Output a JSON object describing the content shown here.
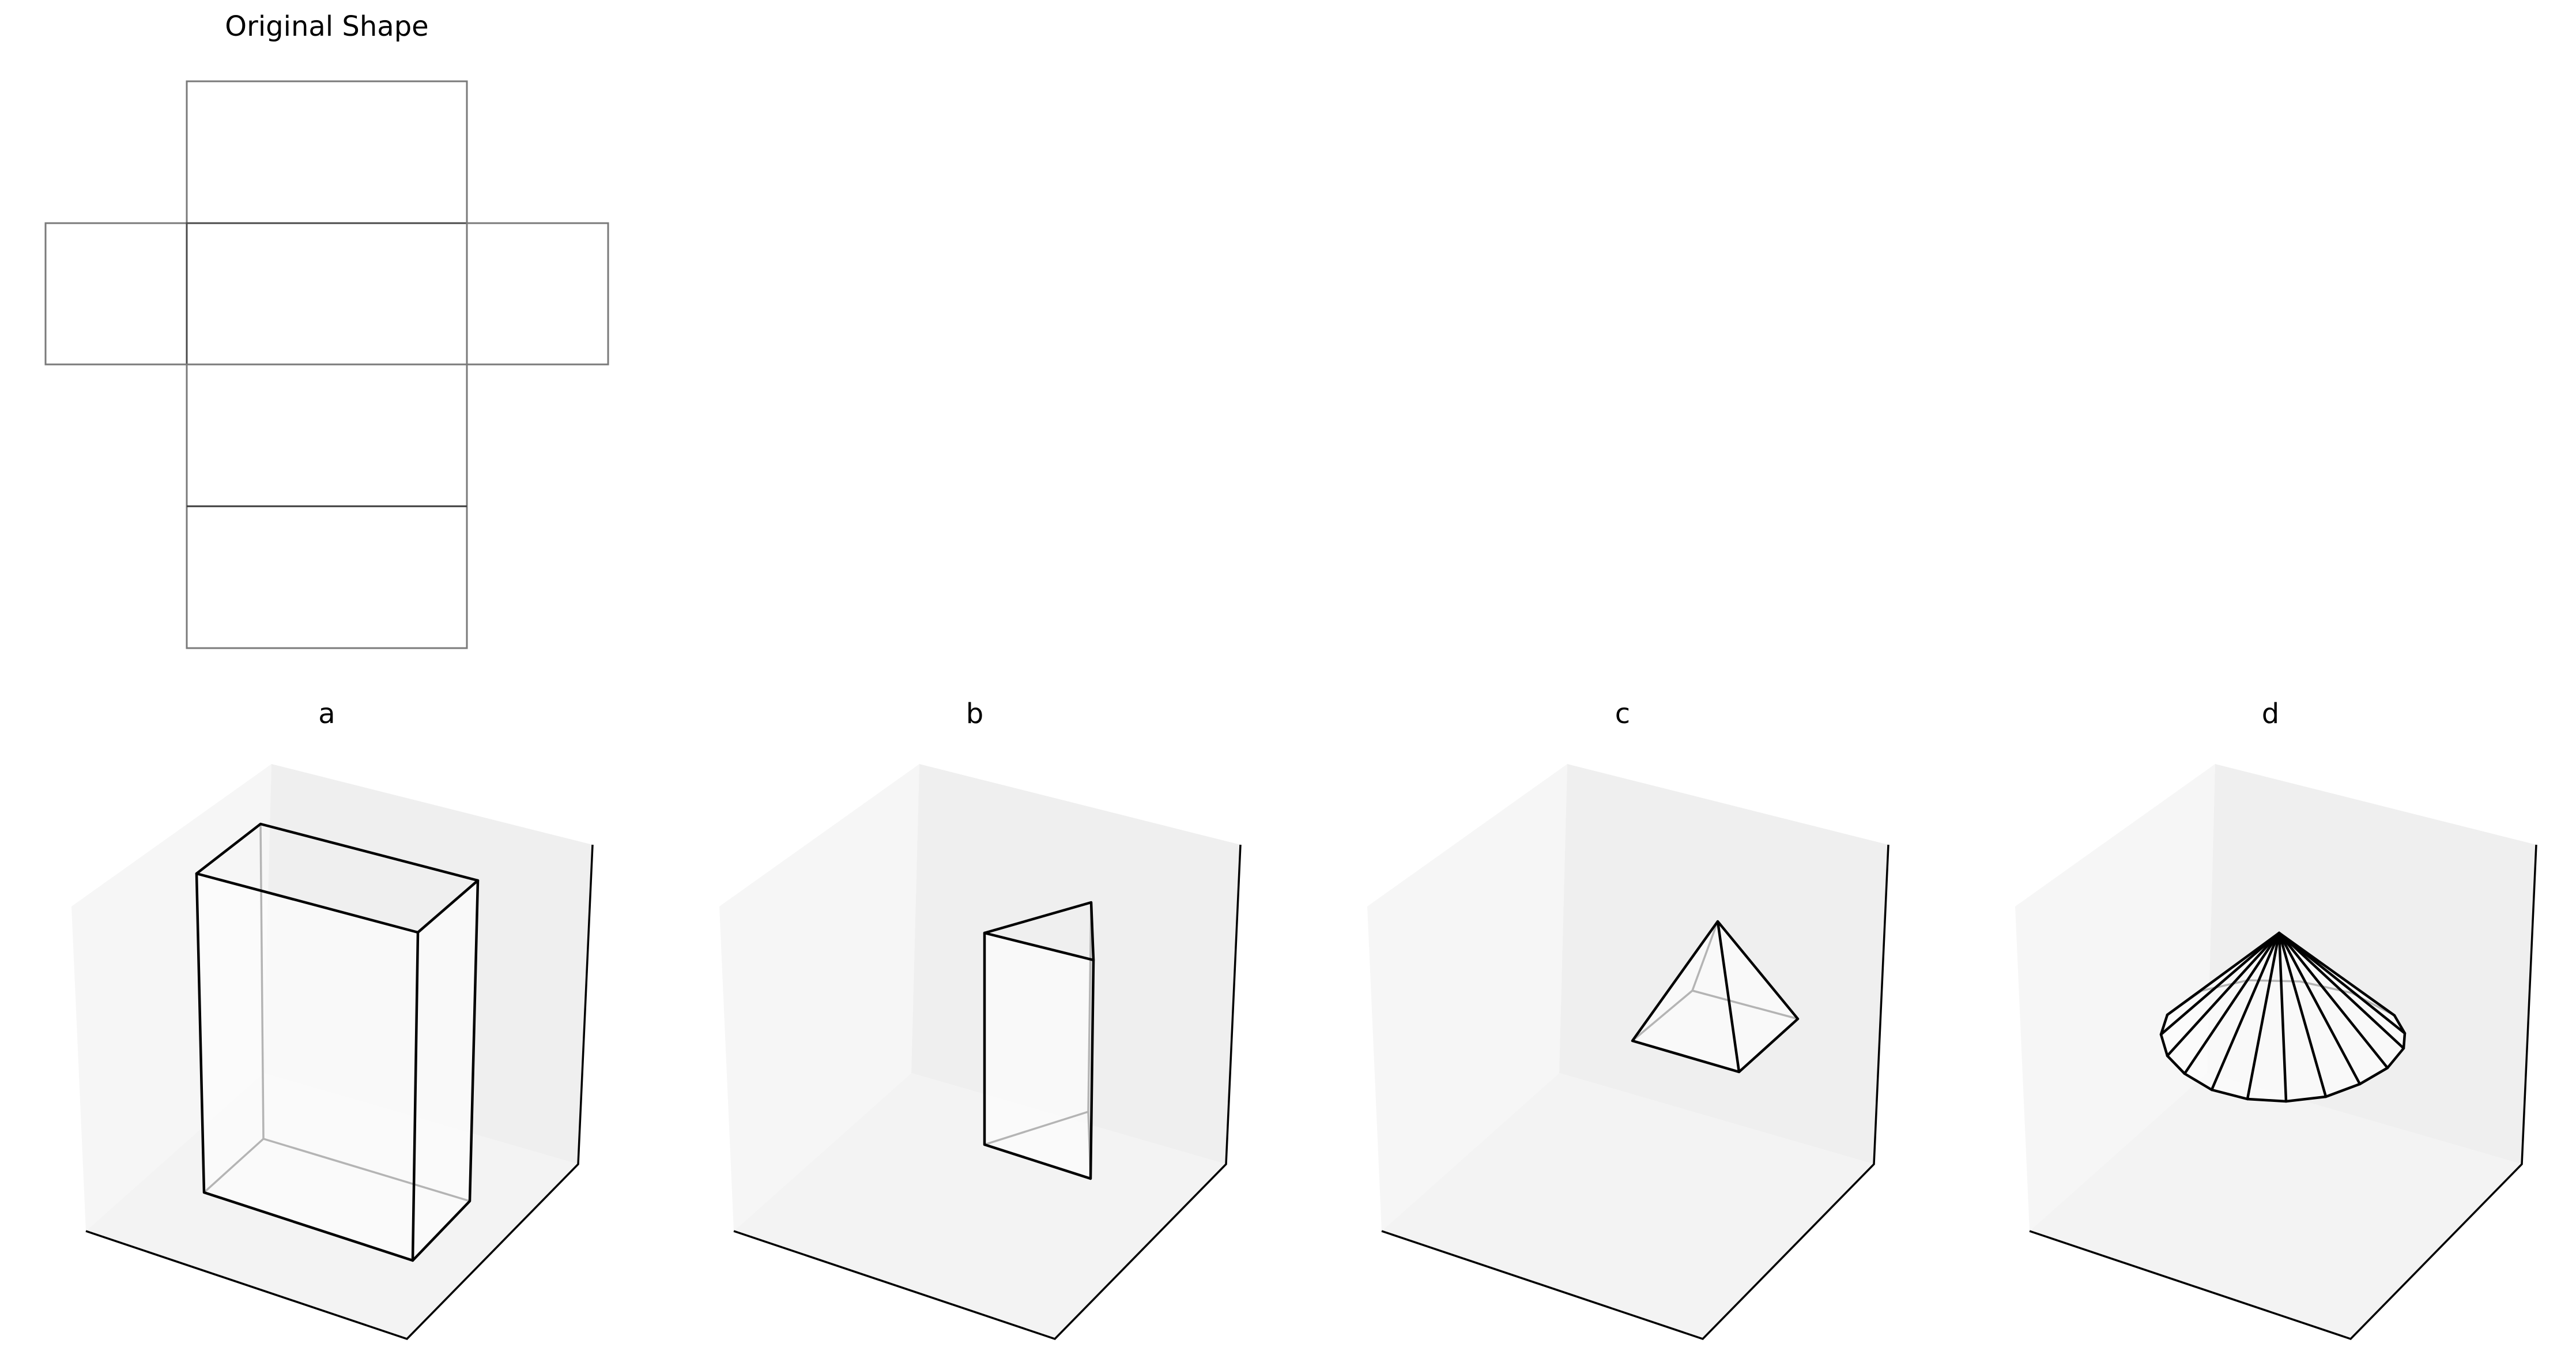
{
  "net": {
    "title": "Original Shape"
  },
  "options": [
    {
      "label": "a",
      "shape": "rectangular-prism"
    },
    {
      "label": "b",
      "shape": "triangular-prism"
    },
    {
      "label": "c",
      "shape": "square-pyramid"
    },
    {
      "label": "d",
      "shape": "cone"
    }
  ],
  "colors": {
    "edge": "#000000",
    "hidden_edge": "#b4b4b4",
    "net_line": "#7a7a7a",
    "pane_left": "#f6f6f6",
    "pane_back": "#efefef",
    "pane_floor": "#f3f3f3"
  }
}
